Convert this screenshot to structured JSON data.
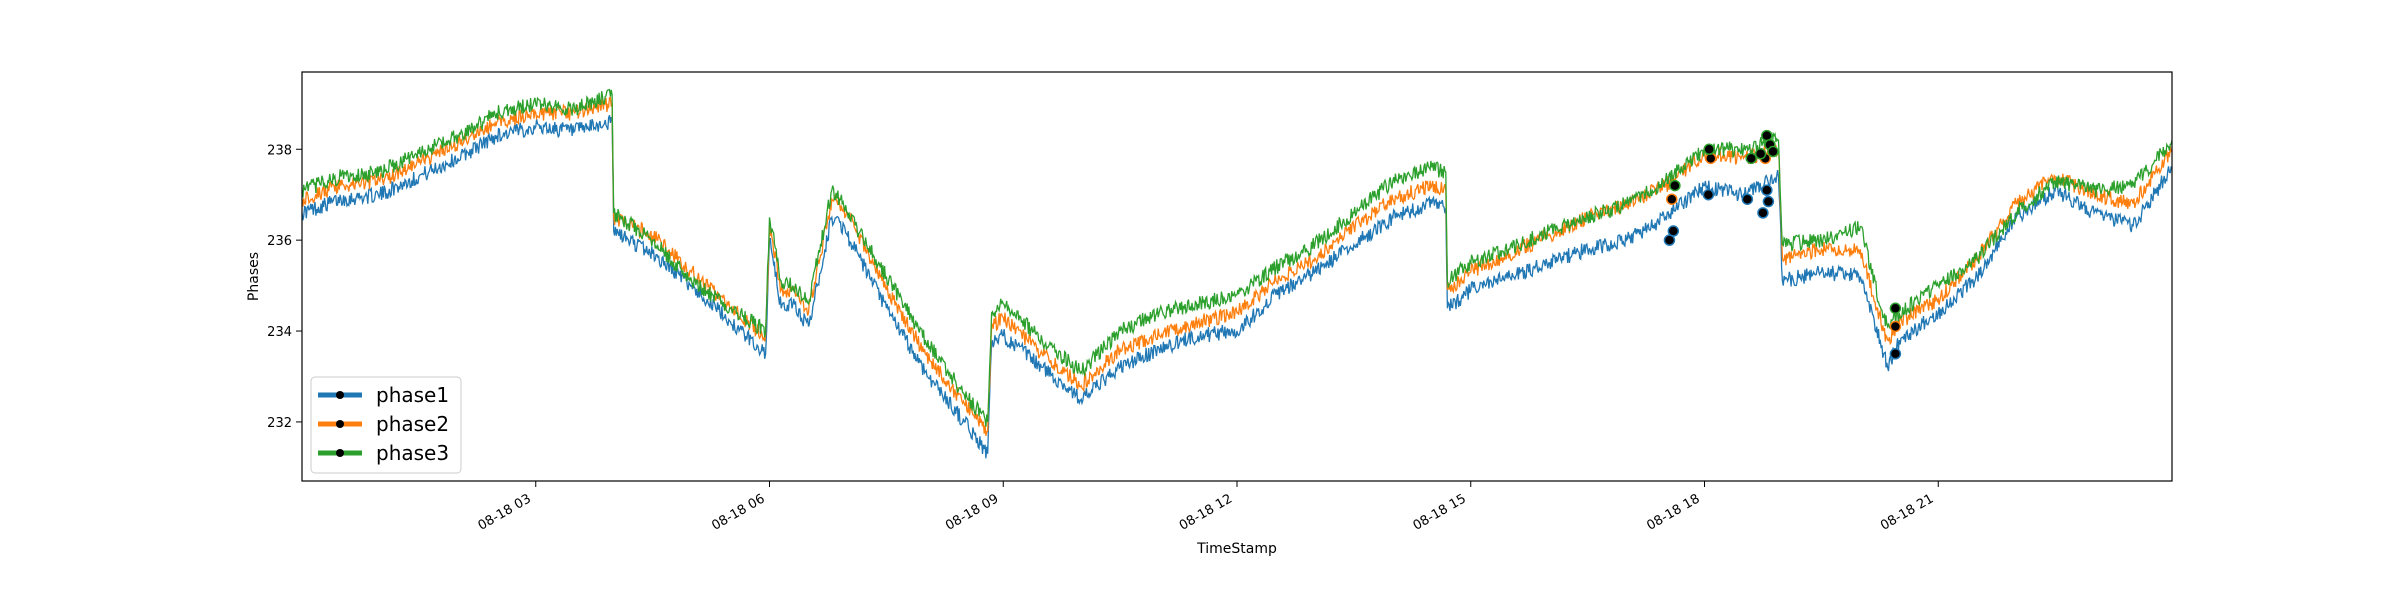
{
  "chart_data": {
    "type": "line",
    "title": "",
    "xlabel": "TimeStamp",
    "ylabel": "Phases",
    "x_range_hours": [
      0.0,
      24.0
    ],
    "ylim": [
      230.7,
      239.7
    ],
    "x_ticks": [
      {
        "hour": 3,
        "label": "08-18 03"
      },
      {
        "hour": 6,
        "label": "08-18 06"
      },
      {
        "hour": 9,
        "label": "08-18 09"
      },
      {
        "hour": 12,
        "label": "08-18 12"
      },
      {
        "hour": 15,
        "label": "08-18 15"
      },
      {
        "hour": 18,
        "label": "08-18 18"
      },
      {
        "hour": 21,
        "label": "08-18 21"
      }
    ],
    "y_ticks": [
      232,
      234,
      236,
      238
    ],
    "grid": false,
    "legend": "bottom-left",
    "x": [
      0.0,
      0.5,
      1.0,
      1.5,
      2.0,
      2.5,
      3.0,
      3.5,
      3.98,
      4.0,
      4.5,
      5.0,
      5.5,
      5.95,
      6.0,
      6.15,
      6.3,
      6.5,
      6.8,
      6.9,
      7.0,
      7.5,
      8.0,
      8.5,
      8.8,
      8.85,
      9.0,
      9.5,
      10.0,
      10.5,
      11.0,
      11.5,
      12.0,
      12.5,
      13.0,
      13.5,
      14.0,
      14.5,
      14.68,
      14.7,
      15.0,
      15.5,
      16.0,
      16.5,
      17.0,
      17.5,
      18.0,
      18.5,
      18.95,
      19.0,
      19.5,
      20.0,
      20.3,
      20.35,
      20.5,
      21.0,
      21.5,
      22.0,
      22.5,
      23.0,
      23.5,
      24.0
    ],
    "series": [
      {
        "name": "phase1",
        "color": "#1f77b4",
        "values": [
          236.6,
          236.9,
          237.0,
          237.4,
          237.8,
          238.3,
          238.5,
          238.4,
          238.6,
          236.2,
          235.7,
          235.0,
          234.2,
          233.5,
          236.0,
          234.5,
          234.6,
          234.1,
          236.5,
          236.4,
          236.1,
          234.5,
          233.1,
          232.0,
          231.3,
          233.7,
          233.9,
          233.2,
          232.5,
          233.2,
          233.6,
          233.9,
          234.0,
          234.8,
          235.3,
          235.9,
          236.5,
          236.8,
          236.7,
          234.5,
          234.9,
          235.2,
          235.5,
          235.8,
          236.0,
          236.5,
          237.2,
          237.0,
          237.4,
          235.1,
          235.3,
          235.2,
          233.5,
          233.2,
          233.8,
          234.4,
          235.2,
          236.5,
          237.1,
          236.6,
          236.3,
          237.6
        ]
      },
      {
        "name": "phase2",
        "color": "#ff7f0e",
        "values": [
          236.9,
          237.2,
          237.3,
          237.7,
          238.1,
          238.6,
          238.8,
          238.8,
          239.0,
          236.5,
          236.1,
          235.3,
          234.5,
          233.9,
          236.3,
          234.9,
          234.9,
          234.4,
          236.9,
          236.8,
          236.6,
          234.9,
          233.5,
          232.4,
          231.8,
          234.1,
          234.3,
          233.5,
          232.8,
          233.6,
          233.9,
          234.2,
          234.4,
          235.1,
          235.6,
          236.3,
          236.9,
          237.2,
          237.1,
          234.9,
          235.3,
          235.7,
          236.1,
          236.5,
          236.8,
          237.2,
          237.9,
          237.8,
          238.0,
          235.6,
          235.8,
          235.8,
          234.0,
          233.8,
          234.2,
          234.7,
          235.6,
          236.8,
          237.4,
          237.0,
          236.8,
          238.0
        ]
      },
      {
        "name": "phase3",
        "color": "#2ca02c",
        "values": [
          237.1,
          237.4,
          237.5,
          237.9,
          238.3,
          238.8,
          239.0,
          238.9,
          239.2,
          236.6,
          236.0,
          235.1,
          234.5,
          234.0,
          236.5,
          235.1,
          235.0,
          234.6,
          237.1,
          236.9,
          236.6,
          235.2,
          233.8,
          232.6,
          232.0,
          234.4,
          234.6,
          233.8,
          233.1,
          234.0,
          234.4,
          234.6,
          234.8,
          235.4,
          235.9,
          236.6,
          237.3,
          237.6,
          237.5,
          235.1,
          235.5,
          235.8,
          236.2,
          236.5,
          236.8,
          237.3,
          238.0,
          238.0,
          238.2,
          235.9,
          236.0,
          236.3,
          234.3,
          234.1,
          234.4,
          235.0,
          235.6,
          236.6,
          237.3,
          237.1,
          237.2,
          238.2
        ]
      }
    ],
    "markers": [
      {
        "x": 17.55,
        "y": 236.0,
        "series": "phase1"
      },
      {
        "x": 17.6,
        "y": 236.2,
        "series": "phase1"
      },
      {
        "x": 18.05,
        "y": 237.0,
        "series": "phase1"
      },
      {
        "x": 18.55,
        "y": 236.9,
        "series": "phase1"
      },
      {
        "x": 18.75,
        "y": 236.6,
        "series": "phase1"
      },
      {
        "x": 18.8,
        "y": 237.1,
        "series": "phase1"
      },
      {
        "x": 18.82,
        "y": 236.85,
        "series": "phase1"
      },
      {
        "x": 20.45,
        "y": 233.5,
        "series": "phase1"
      },
      {
        "x": 17.58,
        "y": 236.9,
        "series": "phase2"
      },
      {
        "x": 18.08,
        "y": 237.8,
        "series": "phase2"
      },
      {
        "x": 18.78,
        "y": 237.8,
        "series": "phase2"
      },
      {
        "x": 20.45,
        "y": 234.1,
        "series": "phase2"
      },
      {
        "x": 17.62,
        "y": 237.2,
        "series": "phase3"
      },
      {
        "x": 18.06,
        "y": 238.0,
        "series": "phase3"
      },
      {
        "x": 18.6,
        "y": 237.8,
        "series": "phase3"
      },
      {
        "x": 18.72,
        "y": 237.9,
        "series": "phase3"
      },
      {
        "x": 18.8,
        "y": 238.3,
        "series": "phase3"
      },
      {
        "x": 18.84,
        "y": 238.1,
        "series": "phase3"
      },
      {
        "x": 18.88,
        "y": 237.95,
        "series": "phase3"
      },
      {
        "x": 20.45,
        "y": 234.5,
        "series": "phase3"
      }
    ]
  }
}
